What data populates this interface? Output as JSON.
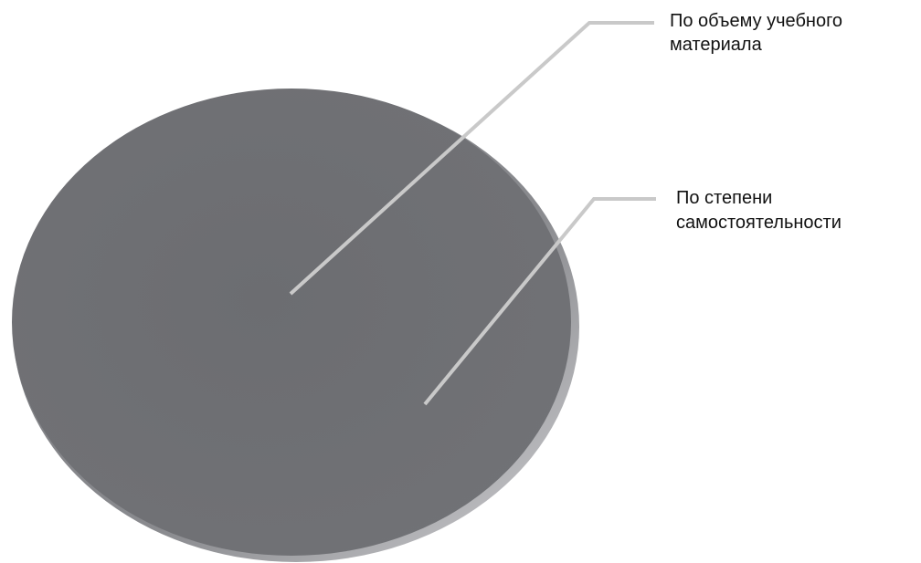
{
  "labels": [
    {
      "lines": [
        "По объему учебного",
        "материала"
      ]
    },
    {
      "lines": [
        "По степени",
        "самостоятельности"
      ]
    }
  ]
}
